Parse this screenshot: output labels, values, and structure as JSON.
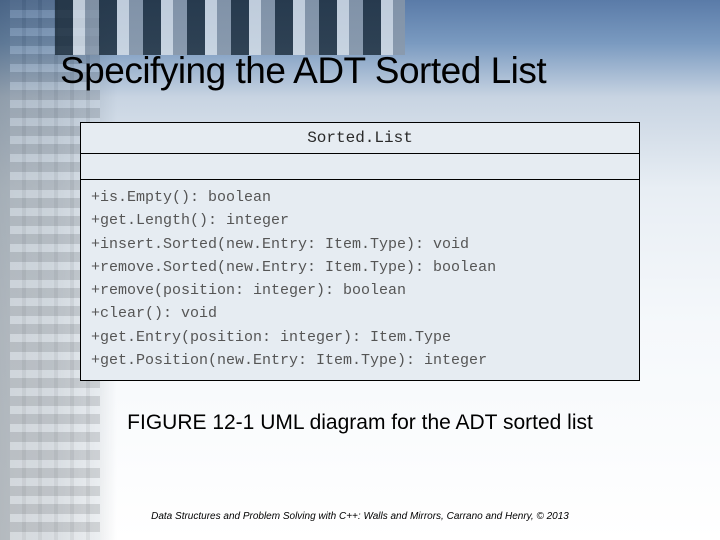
{
  "slide": {
    "title": "Specifying the ADT Sorted List",
    "caption": "FIGURE 12-1 UML diagram for the ADT sorted list",
    "footer": "Data Structures and Problem Solving with C++: Walls and Mirrors, Carrano and Henry, © 2013"
  },
  "uml": {
    "class_name": "Sorted.List",
    "operations": [
      "+is.Empty(): boolean",
      "+get.Length(): integer",
      "+insert.Sorted(new.Entry: Item.Type): void",
      "+remove.Sorted(new.Entry: Item.Type): boolean",
      "+remove(position: integer): boolean",
      "+clear(): void",
      "+get.Entry(position: integer): Item.Type",
      "+get.Position(new.Entry: Item.Type): integer"
    ]
  },
  "style": {
    "uml_bg": "#e6ecf2",
    "uml_border": "#000000",
    "uml_text": "#555555",
    "title_color": "#000000",
    "caption_fontsize": 21,
    "title_fontsize": 37,
    "mono_font": "Courier New"
  }
}
